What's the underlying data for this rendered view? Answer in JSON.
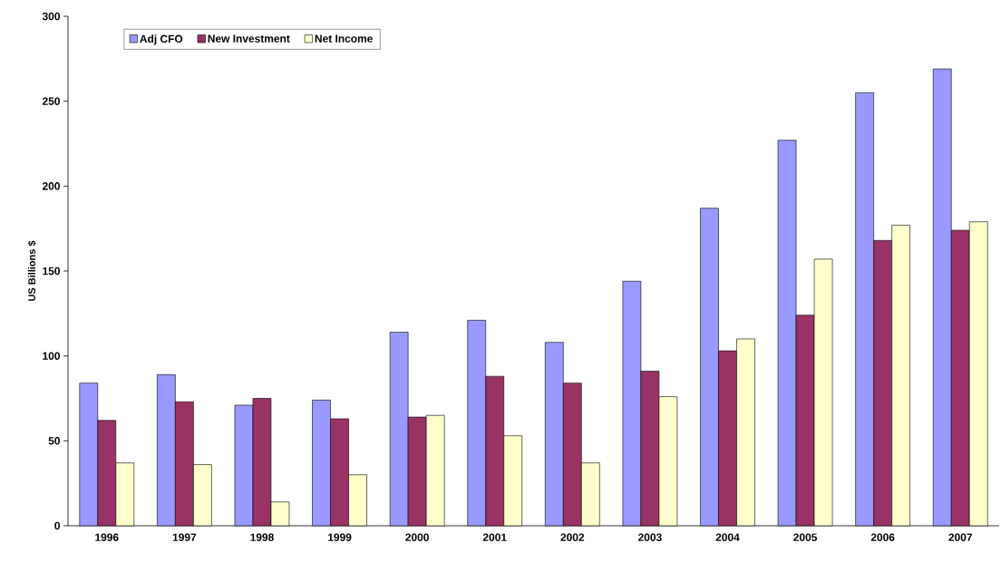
{
  "chart_data": {
    "type": "bar",
    "ylabel": "US Billions $",
    "categories": [
      "1996",
      "1997",
      "1998",
      "1999",
      "2000",
      "2001",
      "2002",
      "2003",
      "2004",
      "2005",
      "2006",
      "2007"
    ],
    "series": [
      {
        "name": "Adj CFO",
        "color": "#9999ff",
        "values": [
          84,
          89,
          71,
          74,
          114,
          121,
          108,
          144,
          187,
          227,
          255,
          269
        ]
      },
      {
        "name": "New Investment",
        "color": "#993366",
        "values": [
          62,
          73,
          75,
          63,
          64,
          88,
          84,
          91,
          103,
          124,
          168,
          174
        ]
      },
      {
        "name": "Net Income",
        "color": "#ffffcc",
        "values": [
          37,
          36,
          14,
          30,
          65,
          53,
          37,
          76,
          110,
          157,
          177,
          179
        ]
      }
    ],
    "ylim": [
      0,
      300
    ],
    "yticks": [
      0,
      50,
      100,
      150,
      200,
      250,
      300
    ],
    "grid": false,
    "legend": "top left"
  }
}
